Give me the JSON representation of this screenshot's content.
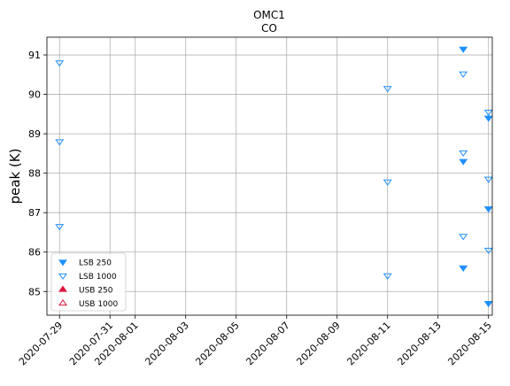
{
  "chart_data": {
    "type": "scatter",
    "title": "OMC1",
    "subtitle": "CO",
    "xlabel": "",
    "ylabel": "peak (K)",
    "x_axis_type": "date",
    "xlim": [
      "2020-07-28",
      "2020-08-15"
    ],
    "ylim": [
      84.4,
      91.45
    ],
    "x_ticks": [
      "2020-07-29",
      "2020-07-31",
      "2020-08-01",
      "2020-08-03",
      "2020-08-05",
      "2020-08-07",
      "2020-08-09",
      "2020-08-11",
      "2020-08-13",
      "2020-08-15"
    ],
    "y_ticks": [
      85,
      86,
      87,
      88,
      89,
      90,
      91
    ],
    "grid": true,
    "legend_position": "lower-left",
    "series": [
      {
        "name": "LSB 250",
        "marker": "triangle-down-filled",
        "color": "#1e90ff",
        "points": [
          {
            "x": "2020-08-14",
            "y": 91.15
          },
          {
            "x": "2020-08-14",
            "y": 88.3
          },
          {
            "x": "2020-08-14",
            "y": 85.6
          },
          {
            "x": "2020-08-15",
            "y": 89.4
          },
          {
            "x": "2020-08-15",
            "y": 87.1
          },
          {
            "x": "2020-08-15",
            "y": 84.7
          }
        ]
      },
      {
        "name": "LSB 1000",
        "marker": "triangle-down-open",
        "color": "#1e90ff",
        "points": [
          {
            "x": "2020-07-29",
            "y": 90.8
          },
          {
            "x": "2020-07-29",
            "y": 88.8
          },
          {
            "x": "2020-07-29",
            "y": 86.65
          },
          {
            "x": "2020-08-11",
            "y": 90.15
          },
          {
            "x": "2020-08-11",
            "y": 87.78
          },
          {
            "x": "2020-08-11",
            "y": 85.4
          },
          {
            "x": "2020-08-14",
            "y": 90.52
          },
          {
            "x": "2020-08-14",
            "y": 88.52
          },
          {
            "x": "2020-08-14",
            "y": 86.4
          },
          {
            "x": "2020-08-15",
            "y": 89.55
          },
          {
            "x": "2020-08-15",
            "y": 87.85
          },
          {
            "x": "2020-08-15",
            "y": 86.05
          }
        ]
      },
      {
        "name": "USB 250",
        "marker": "triangle-up-filled",
        "color": "#dc143c",
        "points": []
      },
      {
        "name": "USB 1000",
        "marker": "triangle-up-open",
        "color": "#dc143c",
        "points": []
      }
    ]
  }
}
